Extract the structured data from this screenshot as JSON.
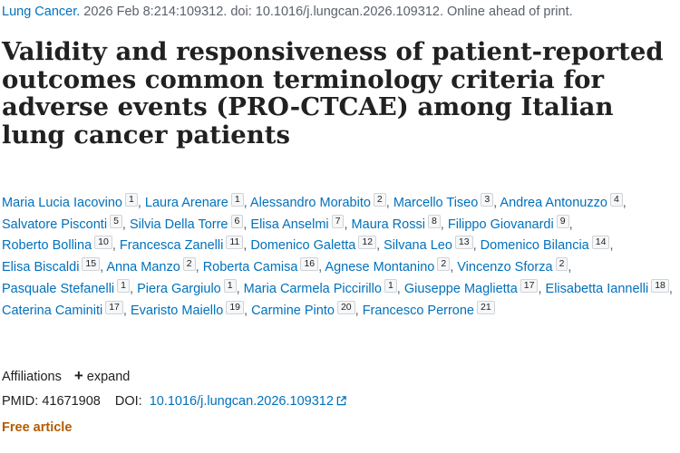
{
  "citation": {
    "journal": "Lung Cancer.",
    "rest": "2026 Feb 8:214:109312. doi: 10.1016/j.lungcan.2026.109312. Online ahead of print."
  },
  "title": "Validity and responsiveness of patient-reported outcomes common terminology criteria for adverse events (PRO-CTCAE) among Italian lung cancer patients",
  "authors": [
    {
      "name": "Maria Lucia Iacovino",
      "aff": "1"
    },
    {
      "name": "Laura Arenare",
      "aff": "1"
    },
    {
      "name": "Alessandro Morabito",
      "aff": "2"
    },
    {
      "name": "Marcello Tiseo",
      "aff": "3"
    },
    {
      "name": "Andrea Antonuzzo",
      "aff": "4"
    },
    {
      "name": "Salvatore Pisconti",
      "aff": "5"
    },
    {
      "name": "Silvia Della Torre",
      "aff": "6"
    },
    {
      "name": "Elisa Anselmi",
      "aff": "7"
    },
    {
      "name": "Maura Rossi",
      "aff": "8"
    },
    {
      "name": "Filippo Giovanardi",
      "aff": "9"
    },
    {
      "name": "Roberto Bollina",
      "aff": "10"
    },
    {
      "name": "Francesca Zanelli",
      "aff": "11"
    },
    {
      "name": "Domenico Galetta",
      "aff": "12"
    },
    {
      "name": "Silvana Leo",
      "aff": "13"
    },
    {
      "name": "Domenico Bilancia",
      "aff": "14"
    },
    {
      "name": "Elisa Biscaldi",
      "aff": "15"
    },
    {
      "name": "Anna Manzo",
      "aff": "2"
    },
    {
      "name": "Roberta Camisa",
      "aff": "16"
    },
    {
      "name": "Agnese Montanino",
      "aff": "2"
    },
    {
      "name": "Vincenzo Sforza",
      "aff": "2"
    },
    {
      "name": "Pasquale Stefanelli",
      "aff": "1"
    },
    {
      "name": "Piera Gargiulo",
      "aff": "1"
    },
    {
      "name": "Maria Carmela Piccirillo",
      "aff": "1"
    },
    {
      "name": "Giuseppe Maglietta",
      "aff": "17"
    },
    {
      "name": "Elisabetta Iannelli",
      "aff": "18"
    },
    {
      "name": "Caterina Caminiti",
      "aff": "17"
    },
    {
      "name": "Evaristo Maiello",
      "aff": "19"
    },
    {
      "name": "Carmine Pinto",
      "aff": "20"
    },
    {
      "name": "Francesco Perrone",
      "aff": "21"
    }
  ],
  "affiliations": {
    "label": "Affiliations",
    "expand_label": "expand"
  },
  "identifiers": {
    "pmid_label": "PMID:",
    "pmid": "41671908",
    "doi_label": "DOI:",
    "doi": "10.1016/j.lungcan.2026.109312"
  },
  "free_article": "Free article",
  "icons": {
    "expand": "plus-icon",
    "external_link": "external-link-icon"
  },
  "colors": {
    "link": "#0071bc",
    "free_article": "#b35b00",
    "text": "#212121",
    "meta": "#5b616b"
  }
}
